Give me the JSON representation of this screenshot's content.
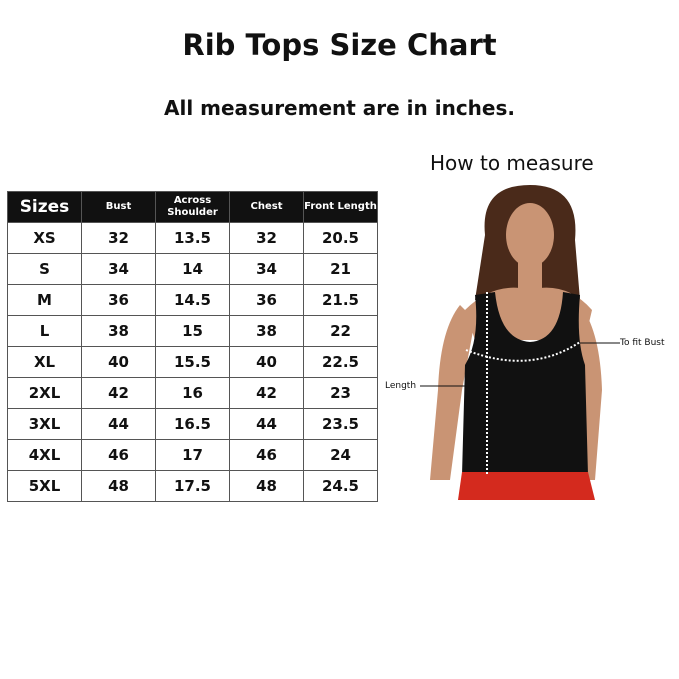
{
  "title": "Rib Tops Size Chart",
  "subtitle": "All measurement are in inches.",
  "how_to_measure": "How to measure",
  "table": {
    "headers": [
      "Sizes",
      "Bust",
      "Across Shoulder",
      "Chest",
      "Front Length"
    ],
    "rows": [
      [
        "XS",
        "32",
        "13.5",
        "32",
        "20.5"
      ],
      [
        "S",
        "34",
        "14",
        "34",
        "21"
      ],
      [
        "M",
        "36",
        "14.5",
        "36",
        "21.5"
      ],
      [
        "L",
        "38",
        "15",
        "38",
        "22"
      ],
      [
        "XL",
        "40",
        "15.5",
        "40",
        "22.5"
      ],
      [
        "2XL",
        "42",
        "16",
        "42",
        "23"
      ],
      [
        "3XL",
        "44",
        "16.5",
        "44",
        "23.5"
      ],
      [
        "4XL",
        "46",
        "17",
        "46",
        "24"
      ],
      [
        "5XL",
        "48",
        "17.5",
        "48",
        "24.5"
      ]
    ]
  },
  "figure": {
    "label_bust": "To fit Bust",
    "label_length": "Length",
    "colors": {
      "top": "#111111",
      "skirt": "#d42a1e",
      "hair": "#4a2a1a",
      "skin": "#c99474"
    }
  }
}
